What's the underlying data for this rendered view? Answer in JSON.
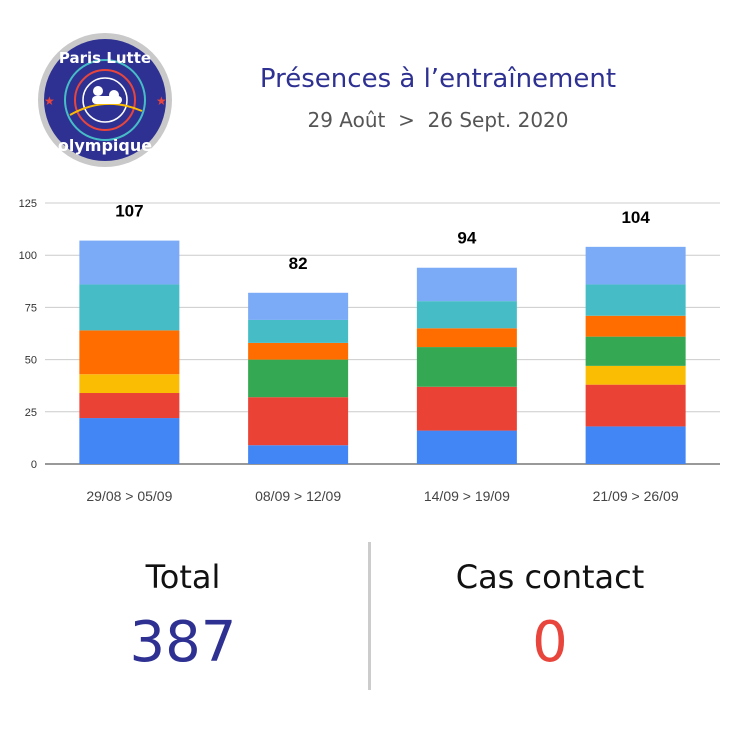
{
  "header": {
    "title": "Présences à l’entraînement",
    "subtitle": "29 Août  >  26 Sept. 2020"
  },
  "logo": {
    "top_text": "Paris Lutte",
    "bottom_text": "olympique",
    "colors": {
      "ring": "#2e3192",
      "star": "#e8453c",
      "text": "#ffffff"
    }
  },
  "chart_data": {
    "type": "bar",
    "stacked": true,
    "categories": [
      "29/08 > 05/09",
      "08/09 > 12/09",
      "14/09 > 19/09",
      "21/09 > 26/09"
    ],
    "series": [
      {
        "color": "#4285f4",
        "values": [
          22,
          9,
          16,
          18
        ]
      },
      {
        "color": "#ea4335",
        "values": [
          12,
          23,
          21,
          20
        ]
      },
      {
        "color": "#fbbc04",
        "values": [
          9,
          0,
          0,
          9
        ]
      },
      {
        "color": "#34a853",
        "values": [
          0,
          18,
          19,
          14
        ]
      },
      {
        "color": "#ff6d01",
        "values": [
          21,
          8,
          9,
          10
        ]
      },
      {
        "color": "#46bdc6",
        "values": [
          22,
          11,
          13,
          15
        ]
      },
      {
        "color": "#7baaf7",
        "values": [
          21,
          13,
          16,
          18
        ]
      }
    ],
    "totals": [
      107,
      82,
      94,
      104
    ],
    "ylim": [
      0,
      125
    ],
    "yticks": [
      0,
      25,
      50,
      75,
      100,
      125
    ],
    "grid": true,
    "legend": "none"
  },
  "stats": {
    "total_label": "Total",
    "total_value": "387",
    "contact_label": "Cas contact",
    "contact_value": "0"
  }
}
